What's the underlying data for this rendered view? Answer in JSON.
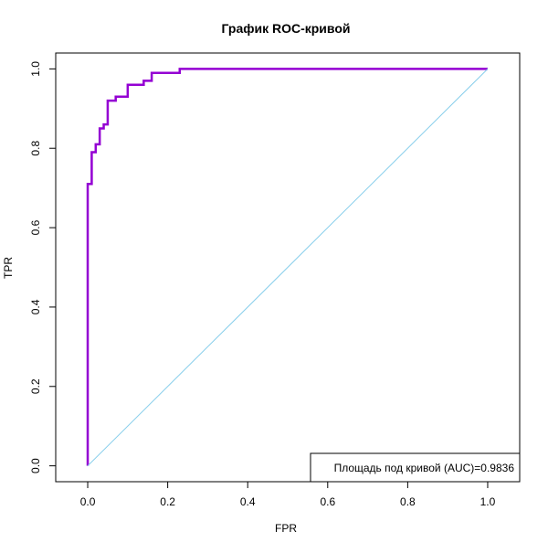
{
  "chart_data": {
    "type": "line",
    "title": "График ROC-кривой",
    "xlabel": "FPR",
    "ylabel": "TPR",
    "xlim": [
      -0.08,
      1.08
    ],
    "ylim": [
      -0.04,
      1.04
    ],
    "x_ticks": [
      0.0,
      0.2,
      0.4,
      0.6,
      0.8,
      1.0
    ],
    "x_tick_labels": [
      "0.0",
      "0.2",
      "0.4",
      "0.6",
      "0.8",
      "1.0"
    ],
    "y_ticks": [
      0.0,
      0.2,
      0.4,
      0.6,
      0.8,
      1.0
    ],
    "y_tick_labels": [
      "0.0",
      "0.2",
      "0.4",
      "0.6",
      "0.8",
      "1.0"
    ],
    "grid": false,
    "legend_position": "bottom-right",
    "legend_text": "Площадь под кривой (AUC)=0.9836",
    "series": [
      {
        "color": "#9400D3",
        "line_style": "step",
        "points": [
          [
            0.0,
            0.0
          ],
          [
            0.0,
            0.71
          ],
          [
            0.01,
            0.71
          ],
          [
            0.01,
            0.79
          ],
          [
            0.02,
            0.79
          ],
          [
            0.02,
            0.81
          ],
          [
            0.03,
            0.81
          ],
          [
            0.03,
            0.85
          ],
          [
            0.04,
            0.85
          ],
          [
            0.04,
            0.86
          ],
          [
            0.05,
            0.86
          ],
          [
            0.05,
            0.92
          ],
          [
            0.07,
            0.92
          ],
          [
            0.07,
            0.93
          ],
          [
            0.1,
            0.93
          ],
          [
            0.1,
            0.96
          ],
          [
            0.14,
            0.96
          ],
          [
            0.14,
            0.97
          ],
          [
            0.16,
            0.97
          ],
          [
            0.16,
            0.99
          ],
          [
            0.23,
            0.99
          ],
          [
            0.23,
            1.0
          ],
          [
            1.0,
            1.0
          ]
        ]
      },
      {
        "color": "#87CEEB",
        "line_style": "diagonal",
        "points": [
          [
            0.0,
            0.0
          ],
          [
            1.0,
            1.0
          ]
        ]
      }
    ]
  }
}
